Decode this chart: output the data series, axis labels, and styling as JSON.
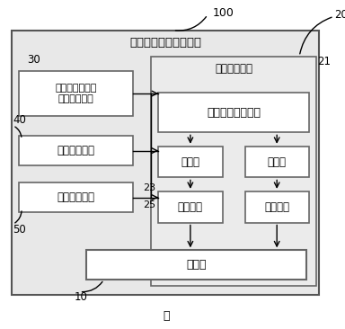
{
  "label_100": "100",
  "label_30": "30",
  "label_20": "20",
  "label_21": "21",
  "label_40": "40",
  "label_50": "50",
  "label_10": "10",
  "label_23": "23",
  "label_25": "25",
  "label_fig": "图",
  "box_outer_label": "全桥移相感应加热装置",
  "box_drive_ctrl": "驱动控制电路",
  "box_phase_ctrl": "全桥移相控制单元",
  "box_limit_prot": "限流保护及功率\n调节控制电路",
  "box_overcurrent": "过流保护电路",
  "box_freq_track": "频率跟踪电路",
  "box_driver_left": "驱动器",
  "box_driver_right": "驱动器",
  "box_peripheral_left": "外围电路",
  "box_peripheral_right": "外围电路",
  "box_main": "主电路",
  "bg_color": "#ffffff",
  "box_fill": "#ffffff",
  "drive_fill": "#ebebeb",
  "outer_fill": "#e8e8e8",
  "box_edge": "#666666",
  "outer_edge": "#555555"
}
